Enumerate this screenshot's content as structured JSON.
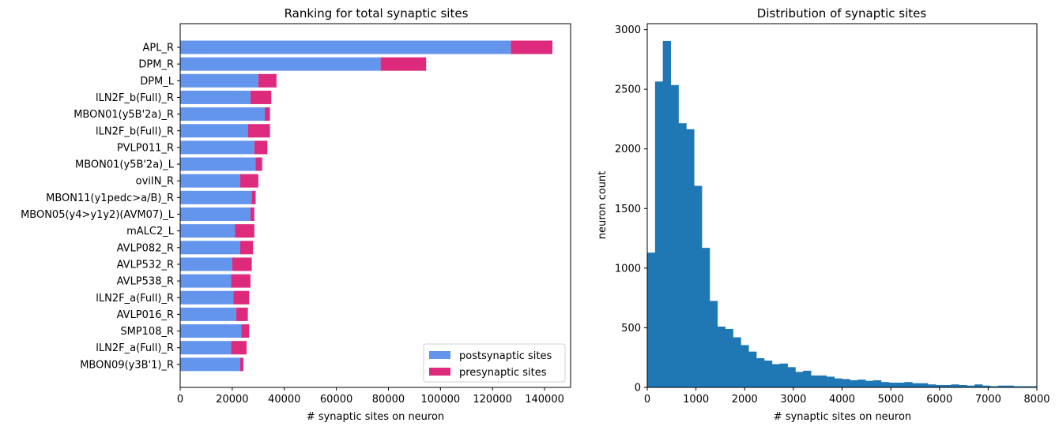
{
  "chart_data": [
    {
      "type": "bar",
      "orientation": "horizontal",
      "stacked": true,
      "title": "Ranking for total synaptic sites",
      "xlabel": "# synaptic sites on neuron",
      "ylabel": "",
      "xlim": [
        0,
        150000
      ],
      "xticks": [
        "0",
        "20000",
        "40000",
        "60000",
        "80000",
        "100000",
        "120000",
        "140000"
      ],
      "xtick_values": [
        0,
        20000,
        40000,
        60000,
        80000,
        100000,
        120000,
        140000
      ],
      "categories": [
        "APL_R",
        "DPM_R",
        "DPM_L",
        "lLN2F_b(Full)_R",
        "MBON01(y5B'2a)_R",
        "lLN2F_b(Full)_R",
        "PVLP011_R",
        "MBON01(y5B'2a)_L",
        "oviIN_R",
        "MBON11(y1pedc>a/B)_R",
        "MBON05(y4>y1y2)(AVM07)_L",
        "mALC2_L",
        "AVLP082_R",
        "AVLP532_R",
        "AVLP538_R",
        "lLN2F_a(Full)_R",
        "AVLP016_R",
        "SMP108_R",
        "lLN2F_a(Full)_R",
        "MBON09(y3B'1)_R"
      ],
      "series": [
        {
          "name": "postsynaptic sites",
          "color": "#6495ed",
          "values": [
            127000,
            77000,
            30000,
            27000,
            32500,
            26000,
            28500,
            29000,
            23000,
            27500,
            27000,
            21000,
            23000,
            20000,
            19500,
            20500,
            21500,
            23500,
            19500,
            23000
          ]
        },
        {
          "name": "presynaptic sites",
          "color": "#dd2a7d",
          "values": [
            16000,
            17500,
            7000,
            8000,
            2000,
            8500,
            5000,
            2500,
            7000,
            1500,
            1500,
            7500,
            5000,
            7500,
            7500,
            6000,
            4500,
            3000,
            6000,
            1300
          ]
        }
      ],
      "legend": {
        "position": "lower-right",
        "entries": [
          "postsynaptic sites",
          "presynaptic sites"
        ]
      }
    },
    {
      "type": "histogram",
      "title": "Distribution of synaptic sites",
      "xlabel": "# synaptic sites on neuron",
      "ylabel": "neuron count",
      "xlim": [
        0,
        8000
      ],
      "ylim": [
        0,
        3050
      ],
      "xticks": [
        "0",
        "1000",
        "2000",
        "3000",
        "4000",
        "5000",
        "6000",
        "7000",
        "8000"
      ],
      "xtick_values": [
        0,
        1000,
        2000,
        3000,
        4000,
        5000,
        6000,
        7000,
        8000
      ],
      "yticks": [
        "0",
        "500",
        "1000",
        "1500",
        "2000",
        "2500",
        "3000"
      ],
      "ytick_values": [
        0,
        500,
        1000,
        1500,
        2000,
        2500,
        3000
      ],
      "bin_width": 160,
      "color": "#1f77b4",
      "values": [
        1130,
        2565,
        2905,
        2535,
        2215,
        2165,
        1690,
        1170,
        725,
        510,
        490,
        420,
        355,
        300,
        245,
        225,
        195,
        200,
        170,
        130,
        140,
        100,
        100,
        90,
        75,
        70,
        60,
        65,
        55,
        60,
        45,
        40,
        40,
        45,
        35,
        35,
        25,
        20,
        20,
        25,
        20,
        15,
        25,
        15,
        10,
        15,
        15,
        10,
        10,
        10
      ]
    }
  ]
}
